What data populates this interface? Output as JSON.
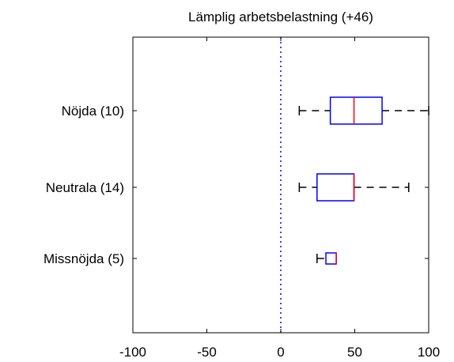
{
  "chart_data": {
    "type": "box",
    "orientation": "horizontal",
    "title": "Lämplig arbetsbelastning (+46)",
    "xlabel": "",
    "ylabel": "",
    "xlim": [
      -100,
      100
    ],
    "xticks": [
      "-100",
      "-50",
      "0",
      "50",
      "100"
    ],
    "reference_line": {
      "x": 0,
      "style": "dotted",
      "color": "#0000ff"
    },
    "grid": false,
    "categories": [
      "Nöjda (10)",
      "Neutrala (14)",
      "Missnöjda (5)"
    ],
    "boxes": [
      {
        "label": "Nöjda (10)",
        "whisker_low": 12.5,
        "q1": 33.5,
        "median": 49.5,
        "q3": 68.5,
        "whisker_high": 100
      },
      {
        "label": "Neutrala (14)",
        "whisker_low": 12.5,
        "q1": 24.5,
        "median": 49.5,
        "q3": 49.5,
        "whisker_high": 86.5
      },
      {
        "label": "Missnöjda (5)",
        "whisker_low": 24.5,
        "q1": 30.5,
        "median": 37.5,
        "q3": 37.5,
        "whisker_high": 37.5
      }
    ],
    "colors": {
      "box": "#0000ff",
      "median": "#ff0000",
      "whisker": "#000000",
      "reference": "#0000ff",
      "axes": "#000000"
    }
  }
}
